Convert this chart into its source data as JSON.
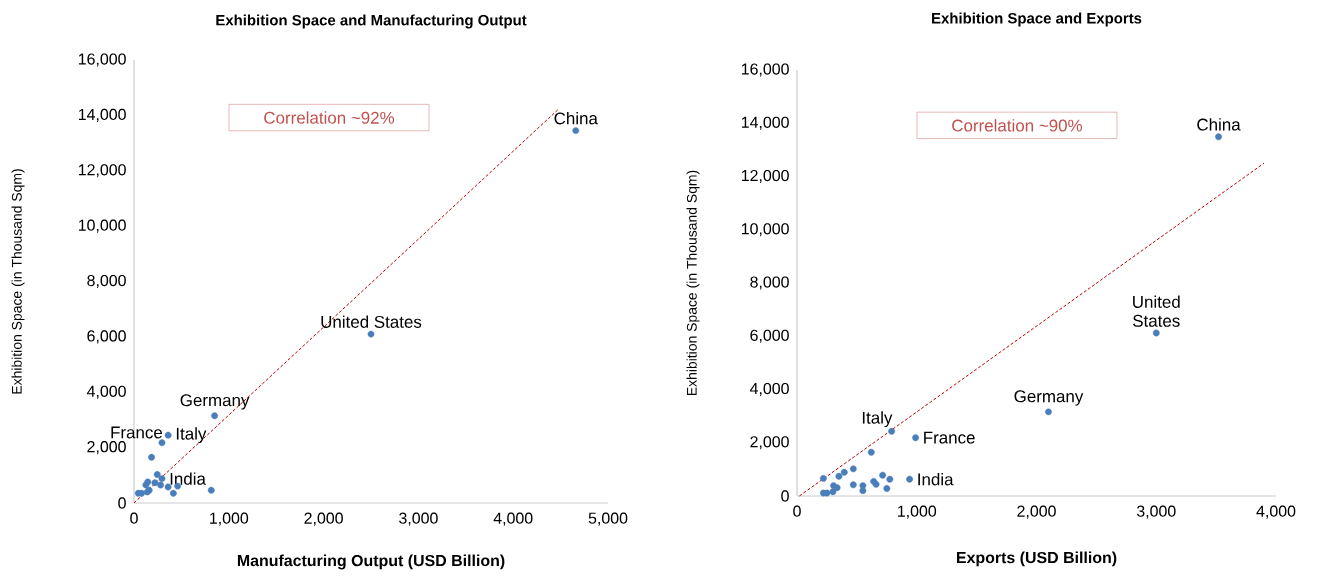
{
  "chart_data": [
    {
      "type": "scatter",
      "title": "Exhibition Space and Manufacturing Output",
      "xlabel": "Manufacturing Output (USD Billion)",
      "ylabel": "Exhibition Space (in Thousand Sqm)",
      "xlim": [
        0,
        5000
      ],
      "ylim": [
        0,
        16000
      ],
      "marker": "circle",
      "xticks": [
        0,
        {
          "value": 1000,
          "label": "1,000"
        },
        {
          "value": 2000,
          "label": "2,000"
        },
        {
          "value": 3000,
          "label": "3,000"
        },
        {
          "value": 4000,
          "label": "4,000"
        },
        {
          "value": 5000,
          "label": "5,000"
        }
      ],
      "yticks": [
        0,
        {
          "value": 2000,
          "label": "2,000"
        },
        {
          "value": 4000,
          "label": "4,000"
        },
        {
          "value": 6000,
          "label": "6,000"
        },
        {
          "value": 8000,
          "label": "8,000"
        },
        {
          "value": 10000,
          "label": "10,000"
        },
        {
          "value": 12000,
          "label": "12,000"
        },
        {
          "value": 14000,
          "label": "14,000"
        },
        {
          "value": 16000,
          "label": "16,000"
        }
      ],
      "series": [
        {
          "color": "#4a7ebb",
          "x": [
            4660,
            2500,
            850,
            360,
            295,
            185,
            245,
            295,
            145,
            125,
            220,
            280,
            360,
            460,
            415,
            815,
            45,
            100,
            160,
            140,
            80
          ],
          "values": [
            13450,
            6100,
            3150,
            2450,
            2180,
            1650,
            1030,
            880,
            760,
            650,
            730,
            650,
            580,
            610,
            350,
            460,
            350,
            null,
            460,
            400,
            350
          ]
        },
        {
          "type": "line",
          "color": "#c00000",
          "line_style": "dashed",
          "marker": "none",
          "x": [
            0,
            4470
          ],
          "values": [
            0,
            14200
          ]
        }
      ],
      "annotations": [
        "Correlation ~92%",
        {
          "text": "China",
          "x": 4660,
          "y": 13450
        },
        {
          "text": "United States",
          "x": 2500,
          "y": 6100
        },
        {
          "text": "Germany",
          "x": 850,
          "y": 3150
        },
        {
          "text": "France",
          "x": 295,
          "y": 2180
        },
        {
          "text": "Italy",
          "x": 360,
          "y": 2450
        },
        {
          "text": "India",
          "x": 295,
          "y": 880
        }
      ]
    },
    {
      "type": "scatter",
      "title": "Exhibition Space and Exports",
      "xlabel": "Exports (USD Billion)",
      "ylabel": "Exhibition Space (in Thousand Sqm)",
      "xlim": [
        0,
        4000
      ],
      "ylim": [
        0,
        16000
      ],
      "marker": "circle",
      "xticks": [
        0,
        {
          "value": 1000,
          "label": "1,000"
        },
        {
          "value": 2000,
          "label": "2,000"
        },
        {
          "value": 3000,
          "label": "3,000"
        },
        {
          "value": 4000,
          "label": "4,000"
        }
      ],
      "yticks": [
        0,
        {
          "value": 2000,
          "label": "2,000"
        },
        {
          "value": 4000,
          "label": "4,000"
        },
        {
          "value": 6000,
          "label": "6,000"
        },
        {
          "value": 8000,
          "label": "8,000"
        },
        {
          "value": 10000,
          "label": "10,000"
        },
        {
          "value": 12000,
          "label": "12,000"
        },
        {
          "value": 14000,
          "label": "14,000"
        },
        {
          "value": 16000,
          "label": "16,000"
        }
      ],
      "series": [
        {
          "color": "#4a7ebb",
          "x": [
            3520,
            3000,
            2100,
            990,
            790,
            620,
            470,
            395,
            350,
            220,
            715,
            775,
            640,
            660,
            470,
            550,
            550,
            750,
            305,
            335,
            300,
            220,
            250,
            940
          ],
          "values": [
            13490,
            6120,
            3160,
            2190,
            2430,
            1640,
            1020,
            890,
            740,
            660,
            780,
            630,
            550,
            440,
            420,
            390,
            200,
            280,
            390,
            310,
            160,
            110,
            110,
            630
          ]
        },
        {
          "type": "line",
          "color": "#c00000",
          "line_style": "dashed",
          "marker": "none",
          "x": [
            20,
            3900
          ],
          "values": [
            0,
            12500
          ]
        }
      ],
      "annotations": [
        "Correlation ~90%",
        {
          "text": "China",
          "x": 3520,
          "y": 13490
        },
        {
          "text": "United States",
          "x": 3000,
          "y": 6120
        },
        {
          "text": "Germany",
          "x": 2100,
          "y": 3160
        },
        {
          "text": "France",
          "x": 990,
          "y": 2190
        },
        {
          "text": "Italy",
          "x": 790,
          "y": 2430
        },
        {
          "text": "India",
          "x": 940,
          "y": 630
        }
      ]
    }
  ]
}
